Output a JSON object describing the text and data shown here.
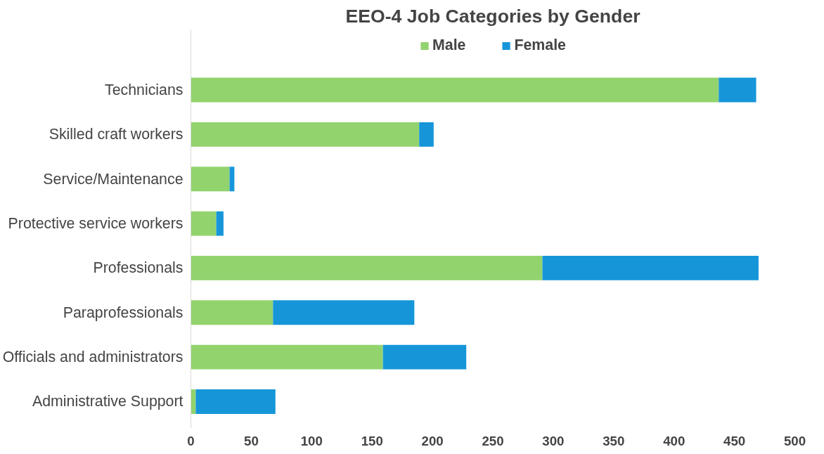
{
  "chart_data": {
    "type": "bar",
    "title": "EEO-4 Job Categories by Gender",
    "orientation": "horizontal",
    "stacked": true,
    "categories": [
      "Technicians",
      "Skilled craft workers",
      "Service/Maintenance",
      "Protective service workers",
      "Professionals",
      "Paraprofessionals",
      "Officials and administrators",
      "Administrative Support"
    ],
    "series": [
      {
        "name": "Male",
        "color": "#92d36e",
        "values": [
          437,
          189,
          32,
          21,
          291,
          68,
          159,
          4
        ]
      },
      {
        "name": "Female",
        "color": "#1696d9",
        "values": [
          31,
          12,
          4,
          6,
          179,
          117,
          69,
          66
        ]
      }
    ],
    "xlim": [
      0,
      500
    ],
    "xticks": [
      0,
      50,
      100,
      150,
      200,
      250,
      300,
      350,
      400,
      450,
      500
    ],
    "grid": false,
    "legend": "top"
  }
}
